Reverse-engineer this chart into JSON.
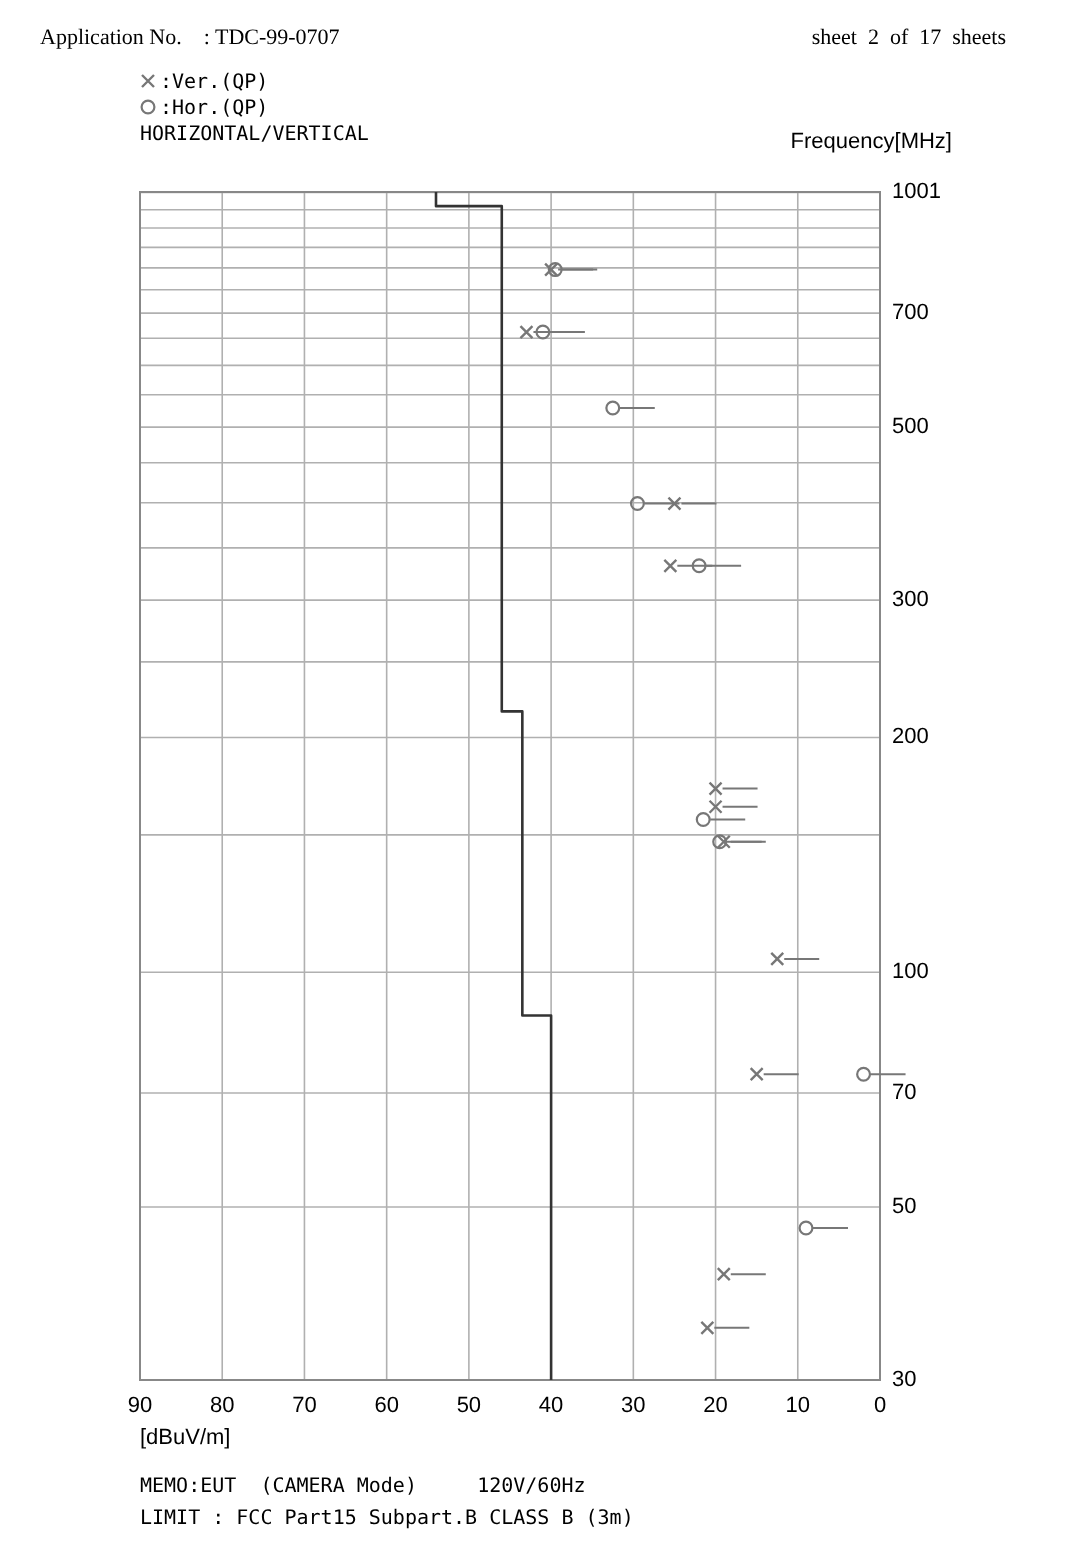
{
  "chart_data": {
    "type": "scatter",
    "xlabel": "[dBuV/m]",
    "ylabel": "Frequency[MHz]",
    "legend_title": "HORIZONTAL/VERTICAL",
    "legend": "top left",
    "grid": true,
    "log": "y",
    "xlim": [
      90,
      0
    ],
    "ylim": [
      30,
      1001
    ],
    "xticks": [
      90,
      80,
      70,
      60,
      50,
      40,
      30,
      20,
      10,
      0
    ],
    "yticks": [
      30,
      50,
      70,
      100,
      {
        "value": 150,
        "label": null
      },
      200,
      {
        "value": 250,
        "label": null
      },
      300,
      {
        "value": 350,
        "label": null
      },
      {
        "value": 400,
        "label": null
      },
      {
        "value": 450,
        "label": null
      },
      500,
      {
        "value": 550,
        "label": null
      },
      {
        "value": 600,
        "label": null
      },
      {
        "value": 650,
        "label": null
      },
      700,
      {
        "value": 750,
        "label": null
      },
      {
        "value": 800,
        "label": null
      },
      {
        "value": 850,
        "label": null
      },
      {
        "value": 900,
        "label": null
      },
      {
        "value": 950,
        "label": null
      },
      {
        "value": 1000,
        "label": null
      },
      1001
    ],
    "annotations": [
      "Application No.    : TDC-99-0707",
      "sheet  2  of  17  sheets",
      "MEMO:EUT  (CAMERA Mode)     120V/60Hz",
      "LIMIT : FCC Part15 Subpart.B CLASS B (3m)"
    ],
    "series": [
      {
        "type": "line",
        "color": "#333333",
        "x": [
          40,
          40,
          43.5,
          43.5,
          46,
          46,
          54,
          54
        ],
        "values": [
          30,
          88,
          88,
          216,
          216,
          960,
          960,
          1001
        ]
      },
      {
        "name": ":Ver.(QP)",
        "marker": "cross",
        "color": "#777777",
        "x": [
          21,
          19,
          15,
          12.5,
          19,
          20,
          20,
          25.5,
          25,
          43,
          40
        ],
        "values": [
          35,
          41,
          74,
          104,
          147,
          163,
          172,
          332,
          399,
          662,
          796
        ]
      },
      {
        "name": ":Hor.(QP)",
        "marker": "circle",
        "color": "#777777",
        "x": [
          9,
          2,
          19.5,
          21.5,
          22,
          29.5,
          32.5,
          41,
          39.5
        ],
        "values": [
          47,
          74,
          147,
          157,
          332,
          399,
          529,
          662,
          796
        ]
      }
    ]
  }
}
